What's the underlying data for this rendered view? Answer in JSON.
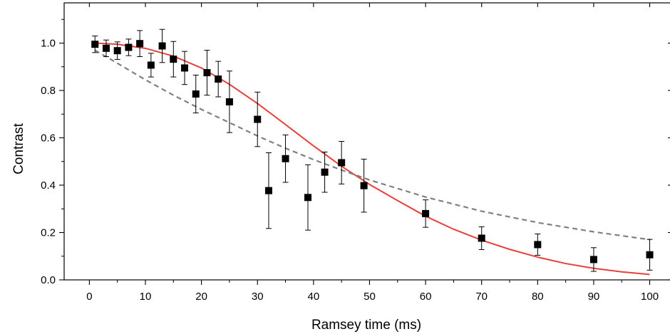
{
  "chart_data": {
    "type": "scatter",
    "title": "",
    "xlabel": "Ramsey time (ms)",
    "ylabel": "Contrast",
    "xlim": [
      -4.5,
      104
    ],
    "ylim": [
      0,
      1.17
    ],
    "xticks": [
      0,
      10,
      20,
      30,
      40,
      50,
      60,
      70,
      80,
      90,
      100
    ],
    "xtick_labels": [
      "0",
      "10",
      "20",
      "30",
      "40",
      "50",
      "60",
      "70",
      "80",
      "90",
      "100"
    ],
    "yticks": [
      0,
      0.2,
      0.4,
      0.6,
      0.8,
      1.0
    ],
    "ytick_labels": [
      "0.0",
      "0.2",
      "0.4",
      "0.6",
      "0.8",
      "1.0"
    ],
    "grid": false,
    "legend": "none",
    "series": [
      {
        "kind": "points-with-error-bars",
        "color": "#000000",
        "marker": "square",
        "points": [
          {
            "x": 1,
            "y": 0.995,
            "err": 0.035
          },
          {
            "x": 3,
            "y": 0.978,
            "err": 0.035
          },
          {
            "x": 5,
            "y": 0.968,
            "err": 0.037
          },
          {
            "x": 7,
            "y": 0.982,
            "err": 0.035
          },
          {
            "x": 9,
            "y": 0.998,
            "err": 0.055
          },
          {
            "x": 11,
            "y": 0.907,
            "err": 0.05
          },
          {
            "x": 13,
            "y": 0.988,
            "err": 0.07
          },
          {
            "x": 15,
            "y": 0.932,
            "err": 0.075
          },
          {
            "x": 17,
            "y": 0.895,
            "err": 0.07
          },
          {
            "x": 19,
            "y": 0.785,
            "err": 0.08
          },
          {
            "x": 21,
            "y": 0.875,
            "err": 0.095
          },
          {
            "x": 23,
            "y": 0.848,
            "err": 0.075
          },
          {
            "x": 25,
            "y": 0.752,
            "err": 0.13
          },
          {
            "x": 30,
            "y": 0.678,
            "err": 0.115
          },
          {
            "x": 32,
            "y": 0.377,
            "err": 0.16
          },
          {
            "x": 35,
            "y": 0.512,
            "err": 0.1
          },
          {
            "x": 39,
            "y": 0.348,
            "err": 0.138
          },
          {
            "x": 42,
            "y": 0.455,
            "err": 0.085
          },
          {
            "x": 45,
            "y": 0.495,
            "err": 0.09
          },
          {
            "x": 49,
            "y": 0.398,
            "err": 0.112
          },
          {
            "x": 60,
            "y": 0.28,
            "err": 0.058
          },
          {
            "x": 70,
            "y": 0.176,
            "err": 0.048
          },
          {
            "x": 80,
            "y": 0.149,
            "err": 0.045
          },
          {
            "x": 90,
            "y": 0.086,
            "err": 0.05
          },
          {
            "x": 100,
            "y": 0.106,
            "err": 0.065
          }
        ]
      },
      {
        "kind": "line",
        "style": "solid",
        "color": "#e8403a",
        "x": [
          1,
          5,
          10,
          15,
          20,
          25,
          30,
          35,
          40,
          45,
          50,
          55,
          60,
          65,
          70,
          75,
          80,
          85,
          90,
          95,
          100
        ],
        "y": [
          1.0,
          0.995,
          0.978,
          0.945,
          0.895,
          0.826,
          0.745,
          0.656,
          0.566,
          0.48,
          0.403,
          0.335,
          0.269,
          0.214,
          0.168,
          0.129,
          0.096,
          0.069,
          0.049,
          0.034,
          0.023
        ]
      },
      {
        "kind": "line",
        "style": "dashed",
        "color": "#808080",
        "x": [
          1,
          5,
          10,
          15,
          20,
          25,
          30,
          35,
          40,
          45,
          50,
          60,
          70,
          80,
          90,
          100
        ],
        "y": [
          0.97,
          0.915,
          0.845,
          0.78,
          0.72,
          0.664,
          0.608,
          0.556,
          0.508,
          0.464,
          0.422,
          0.35,
          0.29,
          0.242,
          0.203,
          0.17
        ]
      }
    ]
  }
}
